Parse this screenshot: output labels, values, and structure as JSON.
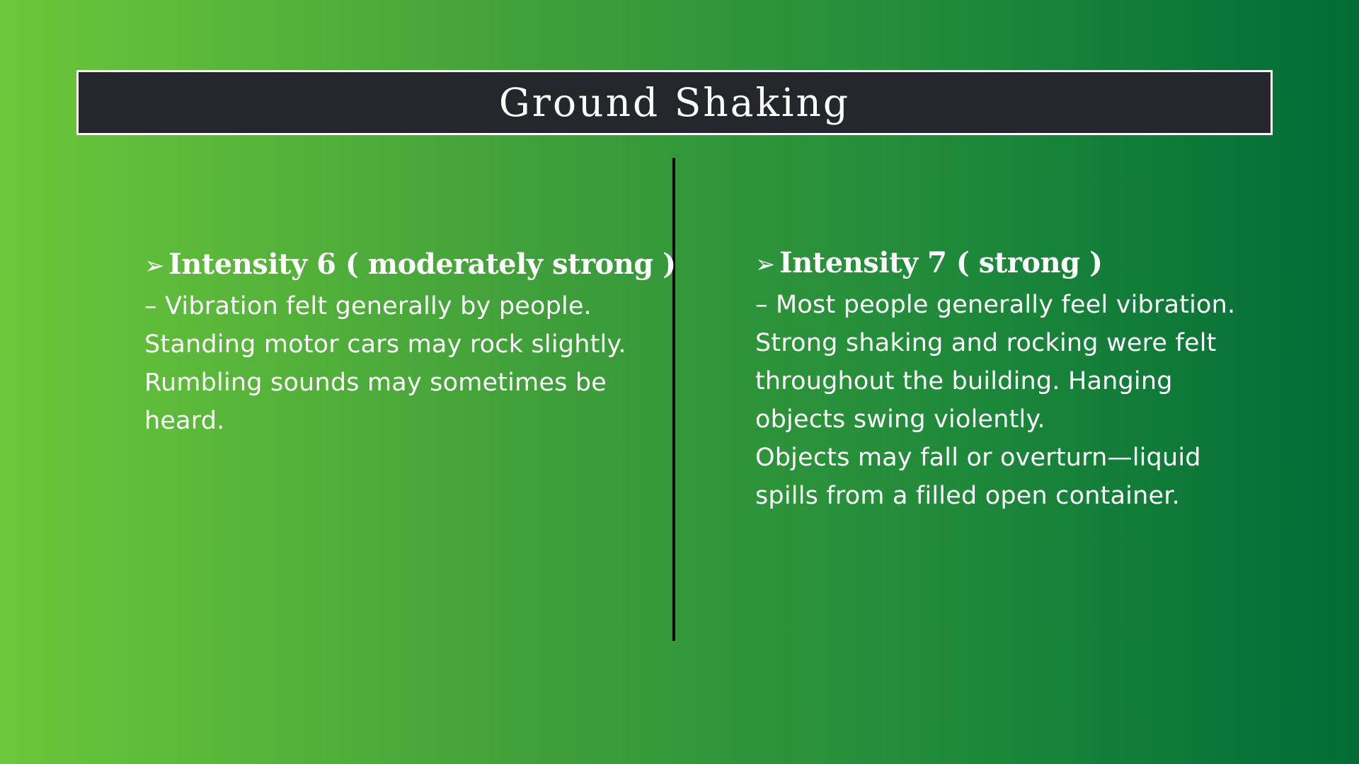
{
  "title": "Ground Shaking",
  "left": {
    "bullet": "➢",
    "heading": "Intensity 6 ( moderately strong )",
    "paragraphs": [
      "– Vibration felt generally by people. Standing motor cars may rock slightly. Rumbling sounds may sometimes be heard."
    ]
  },
  "right": {
    "bullet": "➢",
    "heading": "Intensity 7 ( strong )",
    "paragraphs": [
      "– Most people generally feel vibration. Strong shaking and rocking were felt throughout the building. Hanging objects swing violently.",
      "Objects may fall or overturn—liquid spills from a filled open container."
    ]
  }
}
